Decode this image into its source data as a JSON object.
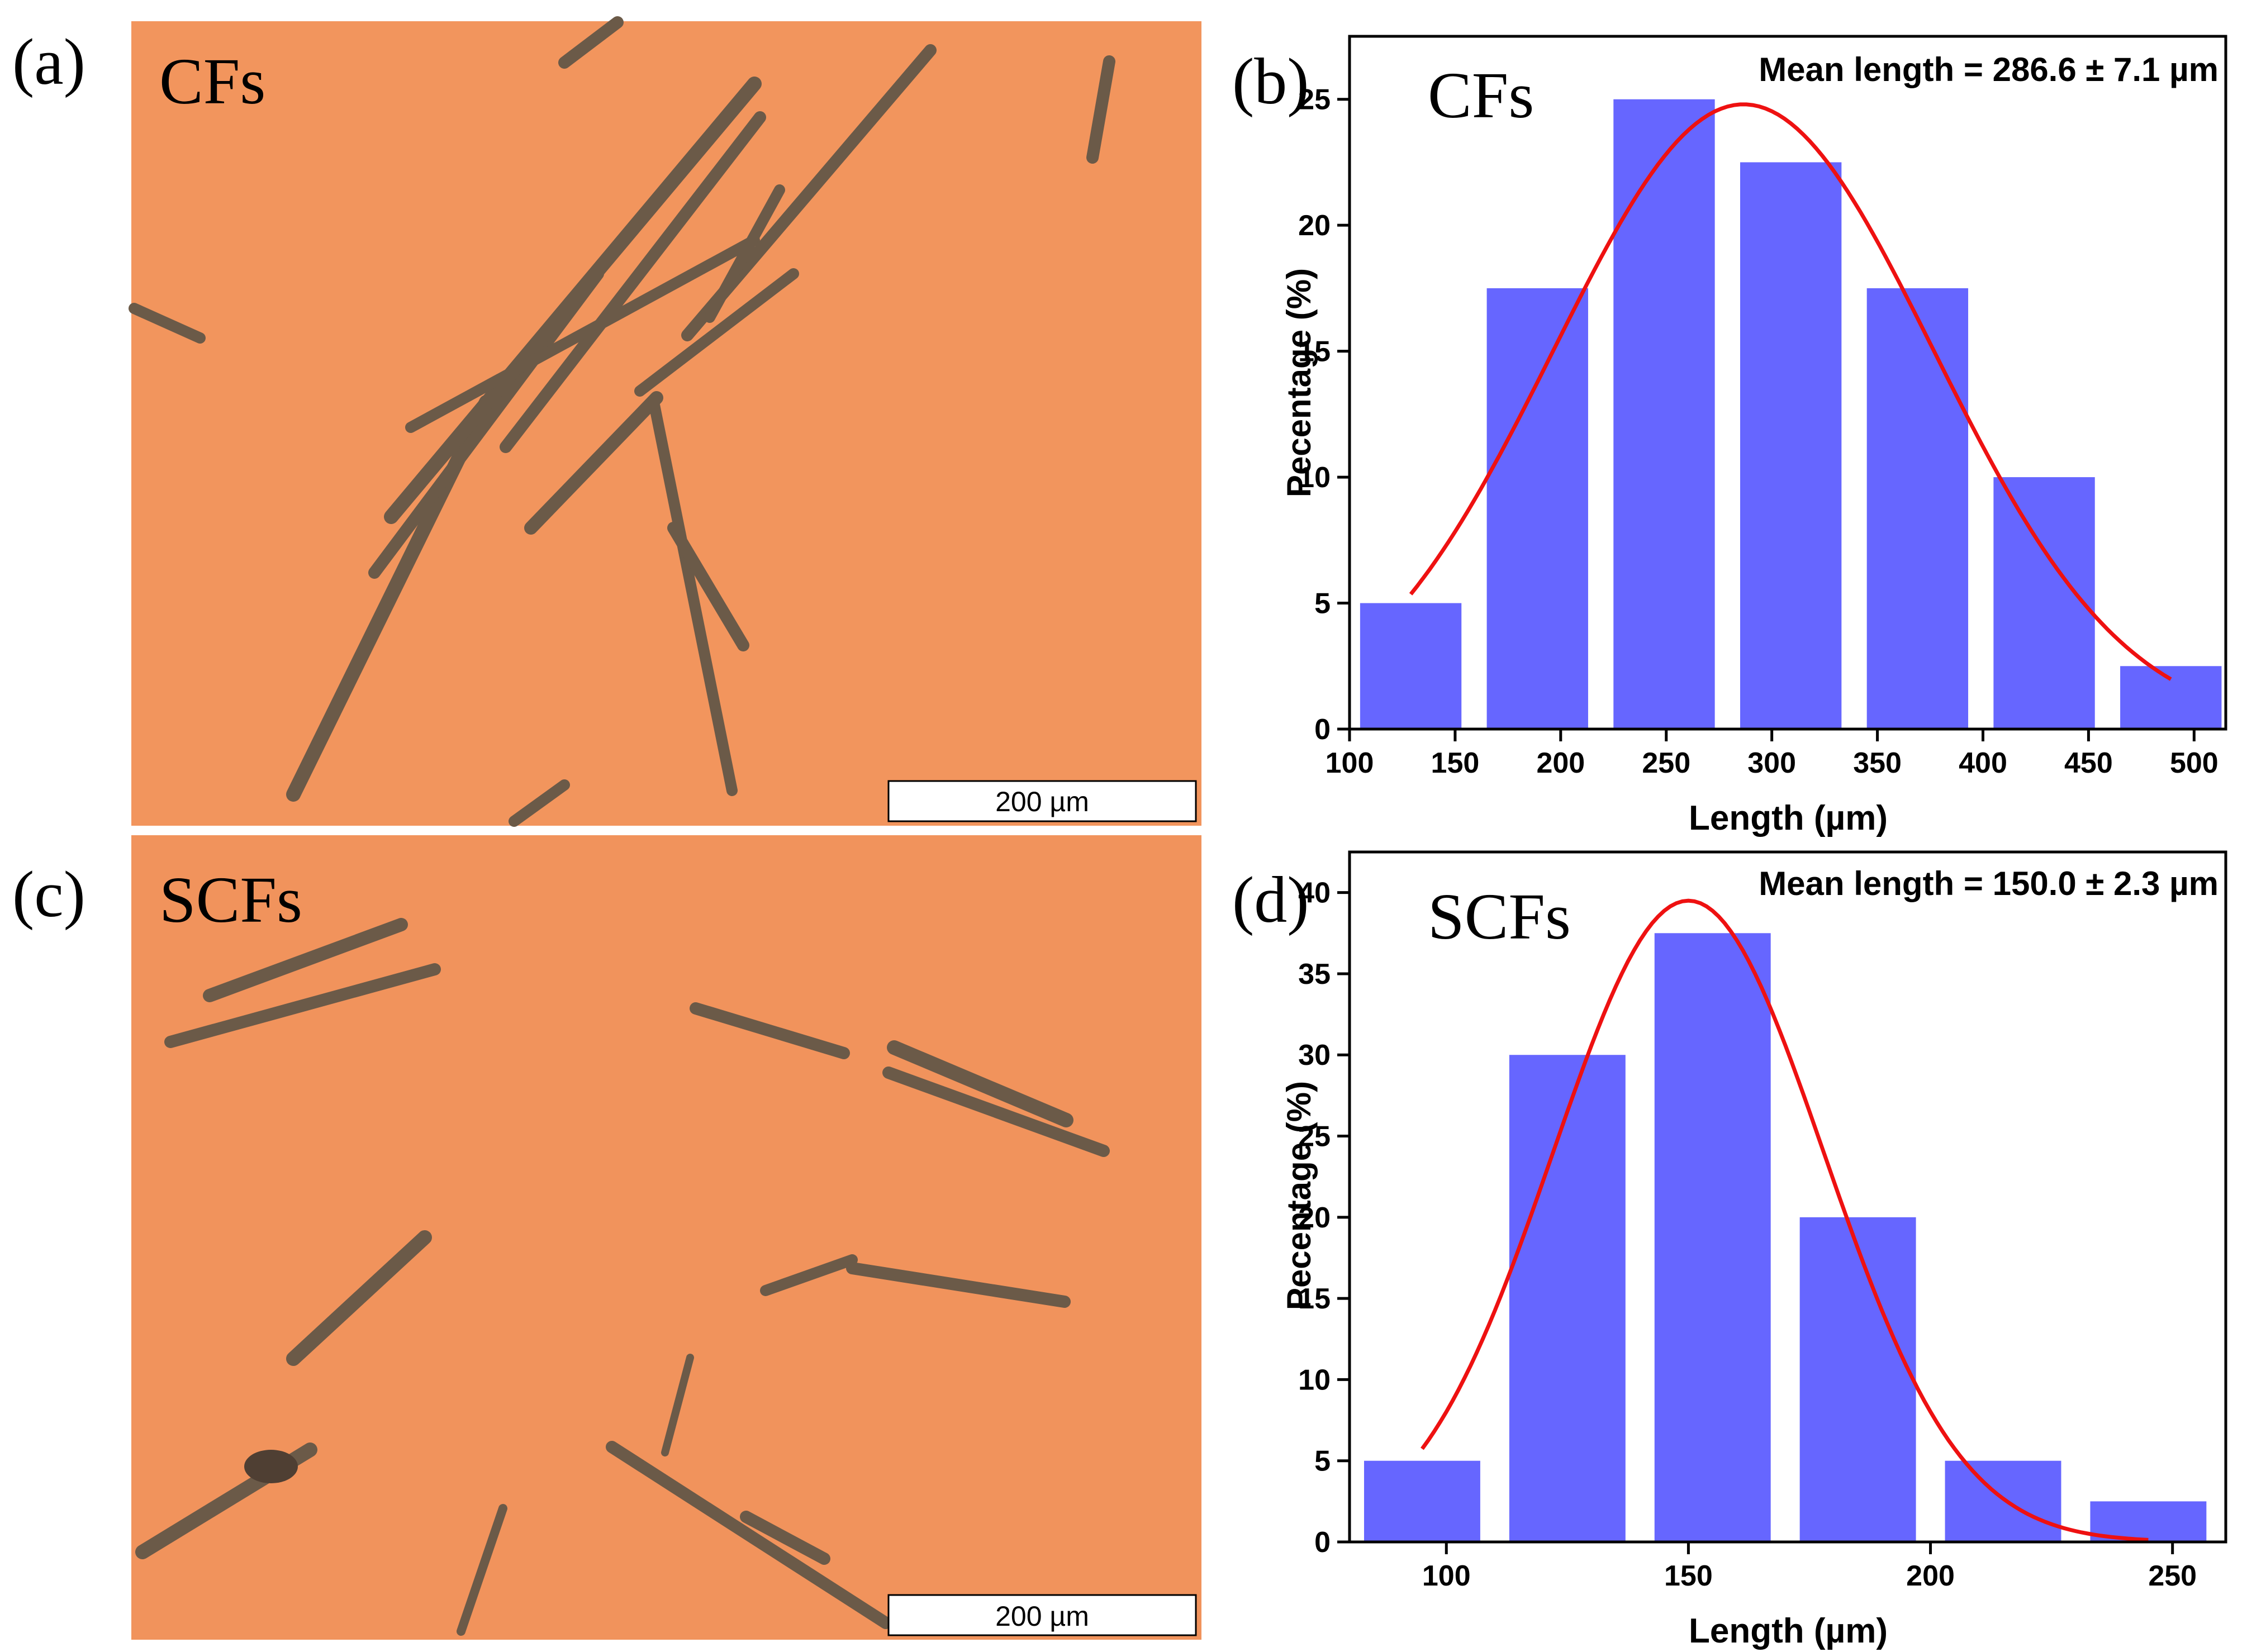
{
  "panels": [
    {
      "letter": "(a)",
      "title": "CFs",
      "scalebar": "200 µm"
    },
    {
      "letter": "(c)",
      "title": "SCFs",
      "scalebar": "200 µm"
    }
  ],
  "colors": {
    "micrograph_background": "#f2955d",
    "fiber": "#6b5a48",
    "bar": "#6666ff",
    "fit_curve": "#ee1111"
  },
  "chart_data": [
    {
      "type": "bar",
      "panel_letter": "(b)",
      "label": "CFs",
      "annotation": "Mean length = 286.6 ± 7.1 µm",
      "xlabel": "Length (µm)",
      "ylabel": "Pecentage (%)",
      "xlim": [
        100,
        515
      ],
      "ylim": [
        0,
        27.5
      ],
      "xticks": [
        100,
        150,
        200,
        250,
        300,
        350,
        400,
        450,
        500
      ],
      "yticks": [
        0,
        5,
        10,
        15,
        20,
        25
      ],
      "bars": [
        {
          "from": 105,
          "to": 153,
          "value": 5
        },
        {
          "from": 165,
          "to": 213,
          "value": 17.5
        },
        {
          "from": 225,
          "to": 273,
          "value": 25
        },
        {
          "from": 285,
          "to": 333,
          "value": 22.5
        },
        {
          "from": 345,
          "to": 393,
          "value": 17.5
        },
        {
          "from": 405,
          "to": 453,
          "value": 10
        },
        {
          "from": 465,
          "to": 513,
          "value": 2.5
        }
      ],
      "fit": {
        "mean": 286.6,
        "sigma": 90,
        "amplitude": 24.8,
        "x_from": 129,
        "x_to": 489
      },
      "grid": false
    },
    {
      "type": "bar",
      "panel_letter": "(d)",
      "label": "SCFs",
      "annotation": "Mean length = 150.0 ± 2.3 µm",
      "xlabel": "Length (µm)",
      "ylabel": "Pecentage (%)",
      "xlim": [
        80,
        261
      ],
      "ylim": [
        0,
        42.5
      ],
      "xticks": [
        100,
        150,
        200,
        250
      ],
      "yticks": [
        0,
        5,
        10,
        15,
        20,
        25,
        30,
        35,
        40
      ],
      "bars": [
        {
          "from": 83,
          "to": 107,
          "value": 5
        },
        {
          "from": 113,
          "to": 137,
          "value": 30
        },
        {
          "from": 143,
          "to": 167,
          "value": 37.5
        },
        {
          "from": 173,
          "to": 197,
          "value": 20
        },
        {
          "from": 203,
          "to": 227,
          "value": 5
        },
        {
          "from": 233,
          "to": 257,
          "value": 2.5
        }
      ],
      "fit": {
        "mean": 150.0,
        "sigma": 28,
        "amplitude": 39.5,
        "x_from": 95,
        "x_to": 245
      },
      "grid": false
    }
  ]
}
